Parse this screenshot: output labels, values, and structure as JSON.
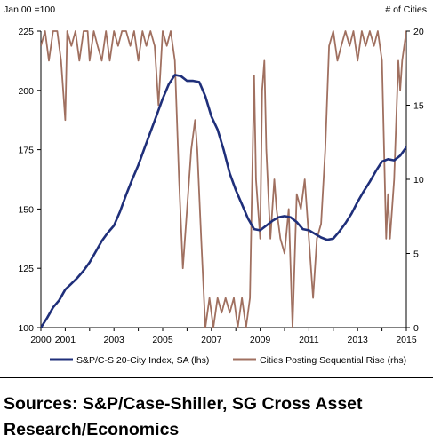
{
  "chart_data": {
    "type": "line",
    "left_axis_label": "Jan 00 =100",
    "right_axis_label": "# of Cities",
    "y_left": {
      "min": 100,
      "max": 225,
      "ticks": [
        "100",
        "125",
        "150",
        "175",
        "200",
        "225"
      ]
    },
    "y_right": {
      "min": 0,
      "max": 20,
      "ticks": [
        "0",
        "5",
        "10",
        "15",
        "20"
      ]
    },
    "x": {
      "min": 2000,
      "max": 2015,
      "ticks": [
        "2000",
        "2001",
        "2003",
        "2005",
        "2007",
        "2009",
        "2011",
        "2013",
        "2015"
      ]
    },
    "grid": false,
    "legend_position": "bottom",
    "series": [
      {
        "name": "S&P/C-S 20-City Index, SA (lhs)",
        "axis": "left",
        "color": "#1f2f7a",
        "points": [
          [
            2000.0,
            100.0
          ],
          [
            2000.25,
            104.0
          ],
          [
            2000.5,
            108.5
          ],
          [
            2000.75,
            111.5
          ],
          [
            2001.0,
            116.0
          ],
          [
            2001.25,
            118.5
          ],
          [
            2001.5,
            121.0
          ],
          [
            2001.75,
            124.0
          ],
          [
            2002.0,
            127.5
          ],
          [
            2002.25,
            132.0
          ],
          [
            2002.5,
            136.5
          ],
          [
            2002.75,
            140.0
          ],
          [
            2003.0,
            143.0
          ],
          [
            2003.25,
            149.0
          ],
          [
            2003.5,
            156.0
          ],
          [
            2003.75,
            162.5
          ],
          [
            2004.0,
            168.5
          ],
          [
            2004.25,
            175.5
          ],
          [
            2004.5,
            182.5
          ],
          [
            2004.75,
            189.5
          ],
          [
            2005.0,
            196.5
          ],
          [
            2005.25,
            202.5
          ],
          [
            2005.5,
            206.5
          ],
          [
            2005.75,
            206.0
          ],
          [
            2006.0,
            204.0
          ],
          [
            2006.25,
            204.0
          ],
          [
            2006.5,
            203.5
          ],
          [
            2006.75,
            197.5
          ],
          [
            2007.0,
            189.0
          ],
          [
            2007.25,
            183.5
          ],
          [
            2007.5,
            175.0
          ],
          [
            2007.75,
            165.0
          ],
          [
            2008.0,
            158.0
          ],
          [
            2008.25,
            152.0
          ],
          [
            2008.5,
            146.0
          ],
          [
            2008.75,
            141.5
          ],
          [
            2009.0,
            141.0
          ],
          [
            2009.25,
            143.0
          ],
          [
            2009.5,
            145.0
          ],
          [
            2009.75,
            146.5
          ],
          [
            2010.0,
            147.0
          ],
          [
            2010.25,
            146.5
          ],
          [
            2010.5,
            144.5
          ],
          [
            2010.75,
            141.5
          ],
          [
            2011.0,
            141.0
          ],
          [
            2011.25,
            139.5
          ],
          [
            2011.5,
            138.0
          ],
          [
            2011.75,
            137.0
          ],
          [
            2012.0,
            137.5
          ],
          [
            2012.25,
            140.5
          ],
          [
            2012.5,
            144.0
          ],
          [
            2012.75,
            148.0
          ],
          [
            2013.0,
            153.0
          ],
          [
            2013.25,
            157.5
          ],
          [
            2013.5,
            161.5
          ],
          [
            2013.75,
            166.0
          ],
          [
            2014.0,
            170.0
          ],
          [
            2014.25,
            171.0
          ],
          [
            2014.5,
            170.5
          ],
          [
            2014.75,
            172.5
          ],
          [
            2015.0,
            176.0
          ],
          [
            2015.25,
            179.5
          ],
          [
            2015.5,
            180.0
          ]
        ]
      },
      {
        "name": "Cities Posting Sequential Rise (rhs)",
        "axis": "right",
        "color": "#a07060",
        "points": [
          [
            2000.0,
            19
          ],
          [
            2000.17,
            20
          ],
          [
            2000.33,
            18
          ],
          [
            2000.5,
            20
          ],
          [
            2000.67,
            20
          ],
          [
            2000.83,
            18
          ],
          [
            2001.0,
            14
          ],
          [
            2001.08,
            20
          ],
          [
            2001.25,
            19
          ],
          [
            2001.42,
            20
          ],
          [
            2001.58,
            18
          ],
          [
            2001.75,
            20
          ],
          [
            2001.92,
            20
          ],
          [
            2002.0,
            18
          ],
          [
            2002.17,
            20
          ],
          [
            2002.33,
            19
          ],
          [
            2002.5,
            18
          ],
          [
            2002.67,
            20
          ],
          [
            2002.83,
            18
          ],
          [
            2003.0,
            20
          ],
          [
            2003.17,
            19
          ],
          [
            2003.33,
            20
          ],
          [
            2003.5,
            20
          ],
          [
            2003.67,
            19
          ],
          [
            2003.83,
            20
          ],
          [
            2004.0,
            18
          ],
          [
            2004.17,
            20
          ],
          [
            2004.33,
            19
          ],
          [
            2004.5,
            20
          ],
          [
            2004.67,
            19
          ],
          [
            2004.83,
            15
          ],
          [
            2005.0,
            20
          ],
          [
            2005.17,
            19
          ],
          [
            2005.33,
            20
          ],
          [
            2005.5,
            18
          ],
          [
            2005.67,
            10
          ],
          [
            2005.83,
            4
          ],
          [
            2006.0,
            8
          ],
          [
            2006.17,
            12
          ],
          [
            2006.33,
            14
          ],
          [
            2006.42,
            12
          ],
          [
            2006.58,
            6
          ],
          [
            2006.75,
            0
          ],
          [
            2006.92,
            2
          ],
          [
            2007.08,
            0
          ],
          [
            2007.25,
            2
          ],
          [
            2007.42,
            1
          ],
          [
            2007.58,
            2
          ],
          [
            2007.75,
            1
          ],
          [
            2007.92,
            2
          ],
          [
            2008.08,
            0
          ],
          [
            2008.25,
            2
          ],
          [
            2008.42,
            0
          ],
          [
            2008.58,
            2
          ],
          [
            2008.75,
            17
          ],
          [
            2008.83,
            10
          ],
          [
            2009.0,
            6
          ],
          [
            2009.08,
            16
          ],
          [
            2009.17,
            18
          ],
          [
            2009.25,
            12
          ],
          [
            2009.42,
            6
          ],
          [
            2009.58,
            10
          ],
          [
            2009.67,
            8
          ],
          [
            2009.83,
            6
          ],
          [
            2010.0,
            5
          ],
          [
            2010.17,
            8
          ],
          [
            2010.33,
            0
          ],
          [
            2010.5,
            9
          ],
          [
            2010.67,
            8
          ],
          [
            2010.83,
            10
          ],
          [
            2011.0,
            6
          ],
          [
            2011.17,
            2
          ],
          [
            2011.33,
            6
          ],
          [
            2011.5,
            7
          ],
          [
            2011.67,
            12
          ],
          [
            2011.83,
            19
          ],
          [
            2012.0,
            20
          ],
          [
            2012.17,
            18
          ],
          [
            2012.33,
            19
          ],
          [
            2012.5,
            20
          ],
          [
            2012.67,
            19
          ],
          [
            2012.83,
            20
          ],
          [
            2013.0,
            18
          ],
          [
            2013.17,
            20
          ],
          [
            2013.33,
            19
          ],
          [
            2013.5,
            20
          ],
          [
            2013.67,
            19
          ],
          [
            2013.83,
            20
          ],
          [
            2014.0,
            18
          ],
          [
            2014.17,
            6
          ],
          [
            2014.25,
            9
          ],
          [
            2014.33,
            6
          ],
          [
            2014.5,
            10
          ],
          [
            2014.67,
            18
          ],
          [
            2014.75,
            16
          ],
          [
            2014.83,
            18
          ],
          [
            2015.0,
            20
          ],
          [
            2015.08,
            11
          ]
        ]
      }
    ]
  },
  "footer": {
    "sources": "Sources: S&P/Case-Shiller, SG Cross Asset Research/Economics"
  }
}
